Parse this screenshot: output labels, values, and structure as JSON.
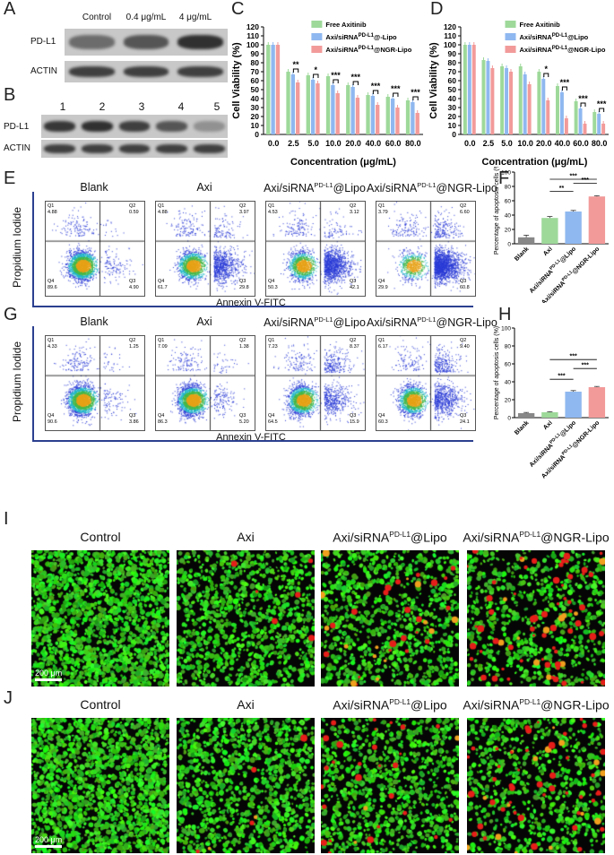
{
  "panel_labels": [
    "A",
    "B",
    "C",
    "D",
    "E",
    "F",
    "G",
    "H",
    "I",
    "J"
  ],
  "panel_A": {
    "columns": [
      "Control",
      "0.4 μg/mL",
      "4 μg/mL"
    ],
    "rows": [
      "PD-L1",
      "ACTIN"
    ],
    "band_intensity": {
      "PD-L1": [
        0.55,
        0.7,
        0.95
      ],
      "ACTIN": [
        0.85,
        0.85,
        0.85
      ]
    }
  },
  "panel_B": {
    "lanes": [
      "1",
      "2",
      "3",
      "4",
      "5"
    ],
    "rows": [
      "PD-L1",
      "ACTIN"
    ],
    "band_intensity": {
      "PD-L1": [
        0.9,
        0.95,
        0.85,
        0.7,
        0.3
      ],
      "ACTIN": [
        0.85,
        0.85,
        0.85,
        0.85,
        0.85
      ]
    }
  },
  "chart_data": [
    {
      "id": "C",
      "type": "bar",
      "ylabel": "Cell Viability (%)",
      "xlabel": "Concentration (μg/mL)",
      "ylim": [
        0,
        120
      ],
      "yticks": [
        "0",
        "10",
        "20",
        "30",
        "40",
        "50",
        "60",
        "70",
        "80",
        "90",
        "100",
        "110",
        "120"
      ],
      "categories": [
        "0.0",
        "2.5",
        "5.0",
        "10.0",
        "20.0",
        "40.0",
        "60.0",
        "80.0"
      ],
      "legend_position": "top-right",
      "series": [
        {
          "name": "Free Axitinib",
          "color": "#9ed99a",
          "values": [
            100,
            70,
            66,
            65,
            55,
            44,
            42,
            38
          ]
        },
        {
          "name": "Axi/siRNA^PD-L1@-Lipo",
          "color": "#8fb8f0",
          "values": [
            100,
            67,
            61,
            55,
            53,
            43,
            40,
            36
          ]
        },
        {
          "name": "Axi/siRNA^PD-L1@NGR-Lipo",
          "color": "#f29a9a",
          "values": [
            100,
            58,
            57,
            46,
            41,
            33,
            30,
            24
          ]
        }
      ],
      "significance": [
        "",
        "**",
        "*",
        "***",
        "***",
        "***",
        "***",
        "***"
      ]
    },
    {
      "id": "D",
      "type": "bar",
      "ylabel": "Cell Viability (%)",
      "xlabel": "Concentration (μg/mL)",
      "ylim": [
        0,
        120
      ],
      "yticks": [
        "0",
        "10",
        "20",
        "30",
        "40",
        "50",
        "60",
        "70",
        "80",
        "90",
        "100",
        "110",
        "120"
      ],
      "categories": [
        "0.0",
        "2.5",
        "5.0",
        "10.0",
        "20.0",
        "40.0",
        "60.0",
        "80.0"
      ],
      "legend_position": "top-right",
      "series": [
        {
          "name": "Free Axitinib",
          "color": "#9ed99a",
          "values": [
            100,
            83,
            76,
            76,
            70,
            54,
            37,
            25
          ]
        },
        {
          "name": "Axi/siRNA^PD-L1@Lipo",
          "color": "#8fb8f0",
          "values": [
            100,
            82,
            74,
            67,
            62,
            47,
            29,
            23
          ]
        },
        {
          "name": "Axi/siRNA^PD-L1@NGR-Lipo",
          "color": "#f29a9a",
          "values": [
            100,
            74,
            70,
            56,
            38,
            18,
            12,
            12
          ]
        }
      ],
      "significance": [
        "",
        "",
        "",
        "",
        "*",
        "***",
        "***",
        "***"
      ]
    },
    {
      "id": "F",
      "type": "bar",
      "ylabel": "Percentage of apoptosis cells (%)",
      "ylim": [
        0,
        100
      ],
      "yticks": [
        "0",
        "20",
        "40",
        "60",
        "80",
        "100"
      ],
      "categories": [
        "Blank",
        "Axi",
        "Axi/siRNA^PD-L1@Lipo",
        "Axi/siRNA^PD-L1@NGR-Lipo"
      ],
      "colors": [
        "#888888",
        "#9ed99a",
        "#8fb8f0",
        "#f29a9a"
      ],
      "values": [
        9,
        36,
        45,
        66
      ],
      "errors": [
        3,
        2,
        1.5,
        1
      ],
      "significance": [
        {
          "from": 1,
          "to": 3,
          "label": "***"
        },
        {
          "from": 2,
          "to": 3,
          "label": "***"
        },
        {
          "from": 1,
          "to": 2,
          "label": "**"
        }
      ]
    },
    {
      "id": "H",
      "type": "bar",
      "ylabel": "Percentage of apoptosis cells (%)",
      "ylim": [
        0,
        100
      ],
      "yticks": [
        "0",
        "20",
        "40",
        "60",
        "80",
        "100"
      ],
      "categories": [
        "Blank",
        "Axi",
        "Axi/siRNA^PD-L1@Lipo",
        "Axi/siRNA^PD-L1@NGR-Lipo"
      ],
      "colors": [
        "#888888",
        "#9ed99a",
        "#8fb8f0",
        "#f29a9a"
      ],
      "values": [
        5,
        6,
        29,
        34
      ],
      "errors": [
        0.8,
        0.6,
        1.2,
        0.8
      ],
      "significance": [
        {
          "from": 1,
          "to": 3,
          "label": "***"
        },
        {
          "from": 2,
          "to": 3,
          "label": "***"
        },
        {
          "from": 1,
          "to": 2,
          "label": "***"
        }
      ]
    }
  ],
  "flow_E": {
    "ylabel": "Propidium Iodide",
    "xlabel": "Annexin V-FITC",
    "plots": [
      {
        "title": "Blank",
        "Q1": "4.88",
        "Q2": "0.59",
        "Q3": "4.90",
        "Q4": "89.6"
      },
      {
        "title": "Axi",
        "Q1": "4.88",
        "Q2": "3.97",
        "Q3": "29.8",
        "Q4": "61.7"
      },
      {
        "title": "Axi/siRNA^PD-L1@Lipo",
        "Q1": "4.53",
        "Q2": "3.12",
        "Q3": "42.1",
        "Q4": "50.3"
      },
      {
        "title": "Axi/siRNA^PD-L1@NGR-Lipo",
        "Q1": "3.79",
        "Q2": "6.60",
        "Q3": "60.8",
        "Q4": "29.9"
      }
    ]
  },
  "flow_G": {
    "ylabel": "Propidium Iodide",
    "xlabel": "Annexin V-FITC",
    "plots": [
      {
        "title": "Blank",
        "Q1": "4.33",
        "Q2": "1.25",
        "Q3": "3.86",
        "Q4": "90.6"
      },
      {
        "title": "Axi",
        "Q1": "7.09",
        "Q2": "1.38",
        "Q3": "5.20",
        "Q4": "86.3"
      },
      {
        "title": "Axi/siRNA^PD-L1@Lipo",
        "Q1": "7.23",
        "Q2": "8.37",
        "Q3": "15.9",
        "Q4": "64.5"
      },
      {
        "title": "Axi/siRNA^PD-L1@NGR-Lipo",
        "Q1": "6.17",
        "Q2": "9.40",
        "Q3": "24.1",
        "Q4": "60.3"
      }
    ]
  },
  "micro_I": {
    "titles": [
      "Control",
      "Axi",
      "Axi/siRNA^PD-L1@Lipo",
      "Axi/siRNA^PD-L1@NGR-Lipo"
    ],
    "red_fraction": [
      0.0,
      0.01,
      0.06,
      0.12
    ],
    "scale": "200 μm"
  },
  "micro_J": {
    "titles": [
      "Control",
      "Axi",
      "Axi/siRNA^PD-L1@Lipo",
      "Axi/siRNA^PD-L1@NGR-Lipo"
    ],
    "red_fraction": [
      0.0,
      0.01,
      0.05,
      0.1
    ],
    "scale": "200 μm"
  }
}
